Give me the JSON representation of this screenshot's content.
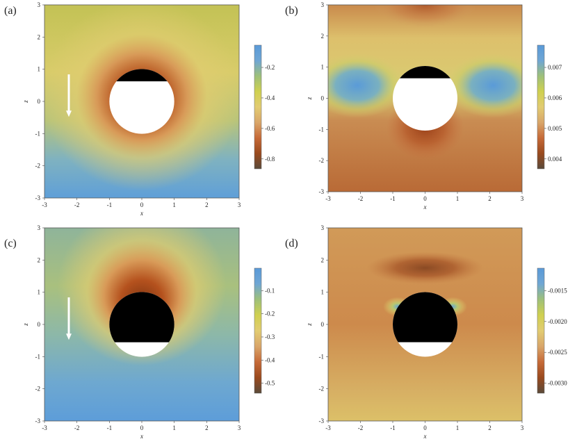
{
  "panels": [
    {
      "label": "(a)",
      "colorbar_ticks": [
        "-0.2",
        "-0.4",
        "-0.6",
        "-0.8"
      ],
      "arrow": true,
      "shadow": "top",
      "field": "a"
    },
    {
      "label": "(b)",
      "colorbar_ticks": [
        "0.007",
        "0.006",
        "0.005",
        "0.004"
      ],
      "arrow": false,
      "shadow": "top",
      "field": "b"
    },
    {
      "label": "(c)",
      "colorbar_ticks": [
        "-0.1",
        "-0.2",
        "-0.3",
        "-0.4",
        "-0.5"
      ],
      "arrow": true,
      "shadow": "cap",
      "field": "c"
    },
    {
      "label": "(d)",
      "colorbar_ticks": [
        "-0.0015",
        "-0.0020",
        "-0.0025",
        "-0.0030"
      ],
      "arrow": false,
      "shadow": "cap",
      "field": "d"
    }
  ],
  "axis_ticks": [
    "-3",
    "-2",
    "-1",
    "0",
    "1",
    "2",
    "3"
  ],
  "x_label": "x",
  "z_label": "z",
  "colors": {
    "colormap": [
      "#5a4a3a",
      "#9a4a1e",
      "#c66a38",
      "#d9a66a",
      "#e2cc72",
      "#cfd050",
      "#9ec07a",
      "#6fa6d4",
      "#5a9ad8"
    ],
    "obstacle": "#000000",
    "arrow": "#ffffff"
  },
  "chart_data": [
    {
      "type": "heatmap",
      "title": "",
      "xlabel": "x",
      "ylabel": "z",
      "xlim": [
        -3,
        3
      ],
      "ylim": [
        -3,
        3
      ],
      "colorbar_ticks": [
        -0.2,
        -0.4,
        -0.6,
        -0.8
      ]
    },
    {
      "type": "heatmap",
      "title": "",
      "xlabel": "x",
      "ylabel": "z",
      "xlim": [
        -3,
        3
      ],
      "ylim": [
        -3,
        3
      ],
      "colorbar_ticks": [
        0.007,
        0.006,
        0.005,
        0.004
      ]
    },
    {
      "type": "heatmap",
      "title": "",
      "xlabel": "x",
      "ylabel": "z",
      "xlim": [
        -3,
        3
      ],
      "ylim": [
        -3,
        3
      ],
      "colorbar_ticks": [
        -0.1,
        -0.2,
        -0.3,
        -0.4,
        -0.5
      ]
    },
    {
      "type": "heatmap",
      "title": "",
      "xlabel": "x",
      "ylabel": "z",
      "xlim": [
        -3,
        3
      ],
      "ylim": [
        -3,
        3
      ],
      "colorbar_ticks": [
        -0.0015,
        -0.002,
        -0.0025,
        -0.003
      ]
    }
  ]
}
